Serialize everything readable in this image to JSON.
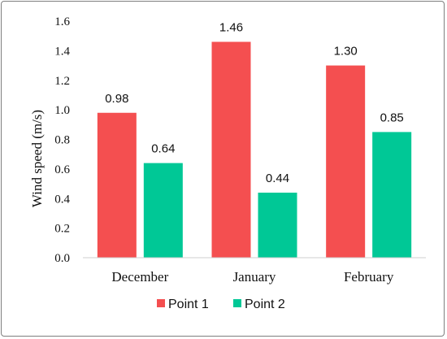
{
  "chart_data": {
    "type": "bar",
    "categories": [
      "December",
      "January",
      "February"
    ],
    "series": [
      {
        "name": "Point 1",
        "color": "#f44f50",
        "values": [
          0.98,
          1.46,
          1.3
        ],
        "labels": [
          "0.98",
          "1.46",
          "1.30"
        ]
      },
      {
        "name": "Point 2",
        "color": "#00c896",
        "values": [
          0.64,
          0.44,
          0.85
        ],
        "labels": [
          "0.64",
          "0.44",
          "0.85"
        ]
      }
    ],
    "ylabel": "Wind speed (m/s)",
    "ylim": [
      0,
      1.6
    ],
    "yticks": [
      "0.0",
      "0.2",
      "0.4",
      "0.6",
      "0.8",
      "1.0",
      "1.2",
      "1.4",
      "1.6"
    ],
    "grid": false,
    "legend_position": "bottom"
  }
}
